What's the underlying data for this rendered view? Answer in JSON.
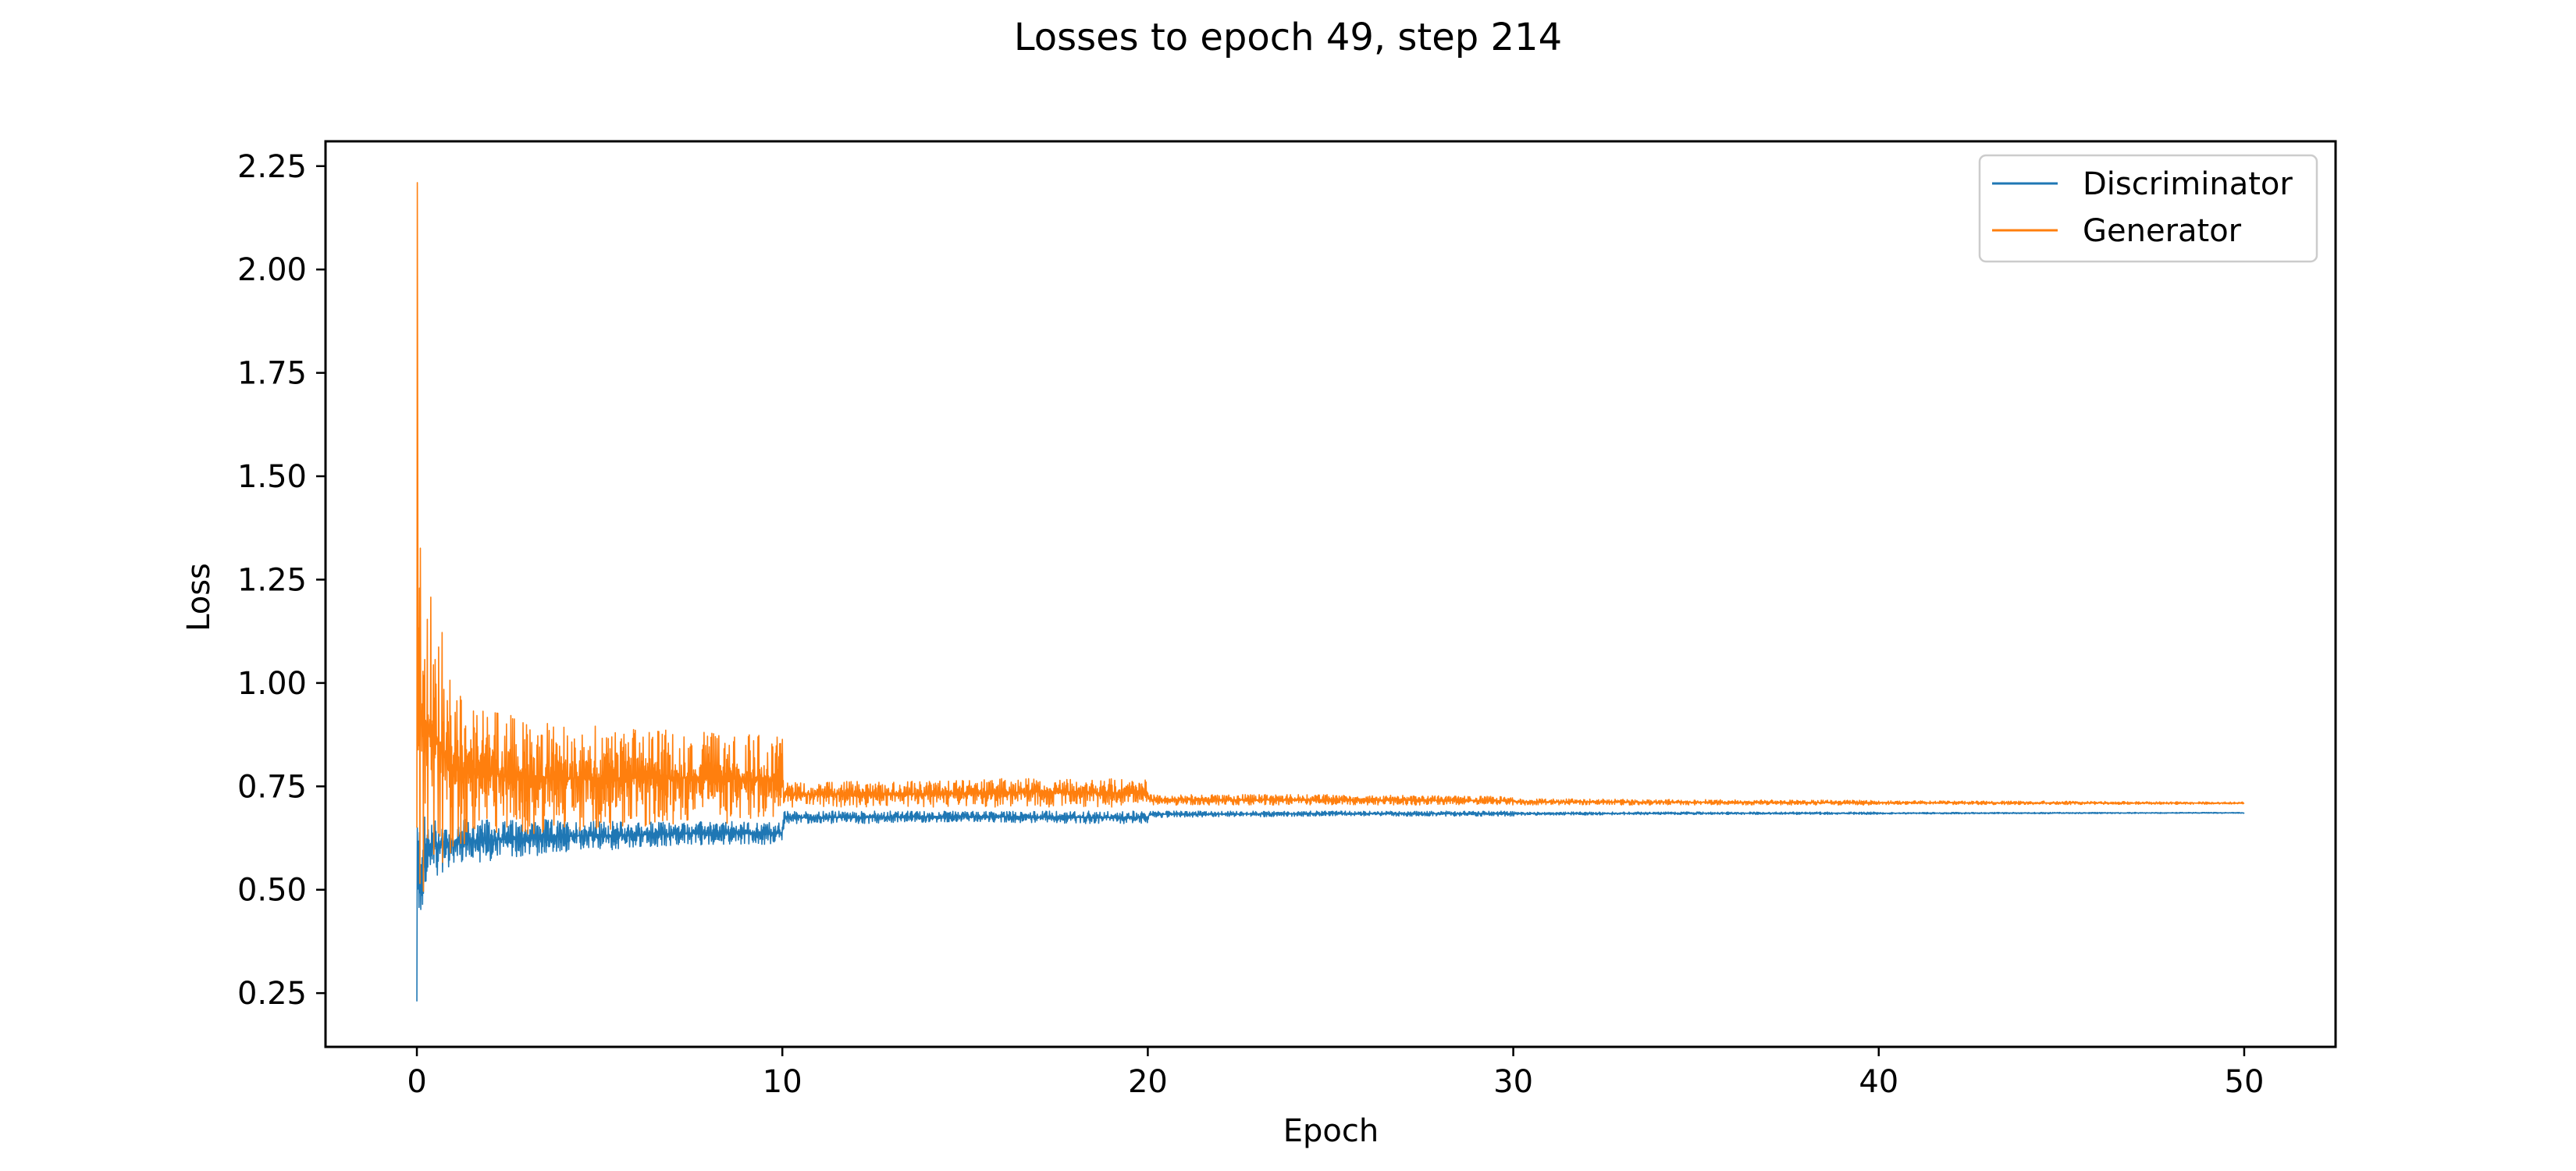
{
  "chart_data": {
    "type": "line",
    "title": "Losses to epoch 49, step 214",
    "xlabel": "Epoch",
    "ylabel": "Loss",
    "xlim": [
      -2.5,
      52.5
    ],
    "ylim": [
      0.12,
      2.31
    ],
    "xticks": [
      0,
      10,
      20,
      30,
      40,
      50
    ],
    "xtick_labels": [
      "0",
      "10",
      "20",
      "30",
      "40",
      "50"
    ],
    "yticks": [
      0.25,
      0.5,
      0.75,
      1.0,
      1.25,
      1.5,
      1.75,
      2.0,
      2.25
    ],
    "ytick_labels": [
      "0.25",
      "0.50",
      "0.75",
      "1.00",
      "1.25",
      "1.50",
      "1.75",
      "2.00",
      "2.25"
    ],
    "grid": false,
    "legend": "top-right",
    "legend_entries": [
      "Discriminator",
      "Generator"
    ],
    "colors": {
      "discriminator": "#1f77b4",
      "generator": "#ff7f0e"
    },
    "series": [
      {
        "name": "Discriminator",
        "color": "#1f77b4",
        "x": [
          0,
          0.05,
          0.3,
          1,
          2,
          4,
          6,
          8,
          10,
          10.05,
          12,
          15,
          18,
          20,
          20.05,
          25,
          30,
          30.05,
          35,
          40,
          40.05,
          45,
          50
        ],
        "low": [
          0.23,
          0.4,
          0.52,
          0.56,
          0.57,
          0.59,
          0.6,
          0.61,
          0.61,
          0.66,
          0.66,
          0.665,
          0.66,
          0.66,
          0.675,
          0.678,
          0.678,
          0.68,
          0.682,
          0.682,
          0.683,
          0.684,
          0.685
        ],
        "high": [
          0.65,
          0.68,
          0.68,
          0.67,
          0.67,
          0.67,
          0.665,
          0.665,
          0.665,
          0.69,
          0.69,
          0.69,
          0.69,
          0.69,
          0.69,
          0.69,
          0.69,
          0.688,
          0.688,
          0.688,
          0.687,
          0.687,
          0.687
        ]
      },
      {
        "name": "Generator",
        "color": "#ff7f0e",
        "x": [
          0,
          0.05,
          0.3,
          0.6,
          1,
          2,
          4,
          6,
          8,
          10,
          10.05,
          15,
          17,
          20,
          20.05,
          25,
          30,
          30.05,
          35,
          40,
          40.05,
          45,
          50
        ],
        "low": [
          0.65,
          0.47,
          0.5,
          0.55,
          0.6,
          0.63,
          0.64,
          0.65,
          0.66,
          0.66,
          0.7,
          0.7,
          0.7,
          0.7,
          0.705,
          0.705,
          0.705,
          0.705,
          0.705,
          0.705,
          0.706,
          0.706,
          0.707
        ],
        "high": [
          2.21,
          1.38,
          1.3,
          1.17,
          0.98,
          0.93,
          0.9,
          0.89,
          0.88,
          0.87,
          0.76,
          0.765,
          0.775,
          0.765,
          0.73,
          0.73,
          0.725,
          0.72,
          0.718,
          0.716,
          0.715,
          0.714,
          0.712
        ]
      }
    ]
  }
}
